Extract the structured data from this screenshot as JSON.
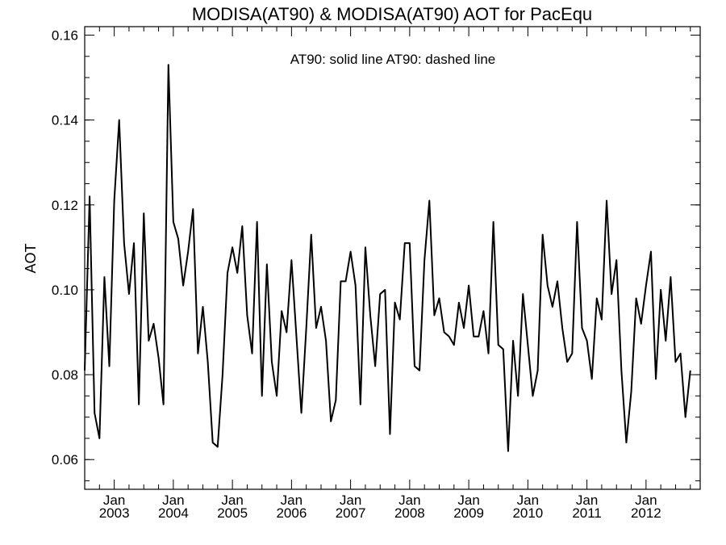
{
  "chart_data": {
    "type": "line",
    "title": "MODISA(AT90) & MODISA(AT90)  AOT for PacEqu",
    "annotation": "AT90: solid line   AT90: dashed line",
    "xlabel": "",
    "ylabel": "AOT",
    "x_axis": {
      "start": "2002-07",
      "end": "2012-12",
      "ticks": [
        {
          "date": "2003-01",
          "top": "Jan",
          "bottom": "2003"
        },
        {
          "date": "2004-01",
          "top": "Jan",
          "bottom": "2004"
        },
        {
          "date": "2005-01",
          "top": "Jan",
          "bottom": "2005"
        },
        {
          "date": "2006-01",
          "top": "Jan",
          "bottom": "2006"
        },
        {
          "date": "2007-01",
          "top": "Jan",
          "bottom": "2007"
        },
        {
          "date": "2008-01",
          "top": "Jan",
          "bottom": "2008"
        },
        {
          "date": "2009-01",
          "top": "Jan",
          "bottom": "2009"
        },
        {
          "date": "2010-01",
          "top": "Jan",
          "bottom": "2010"
        },
        {
          "date": "2011-01",
          "top": "Jan",
          "bottom": "2011"
        },
        {
          "date": "2012-01",
          "top": "Jan",
          "bottom": "2012"
        }
      ]
    },
    "ylim": [
      0.053,
      0.162
    ],
    "yticks": [
      "0.06",
      "0.08",
      "0.10",
      "0.12",
      "0.14",
      "0.16"
    ],
    "grid": false,
    "series": [
      {
        "style": "solid",
        "color": "#000000",
        "start": "2002-07",
        "values": [
          0.081,
          0.122,
          0.071,
          0.065,
          0.103,
          0.082,
          0.121,
          0.14,
          0.111,
          0.099,
          0.111,
          0.073,
          0.118,
          0.088,
          0.092,
          0.084,
          0.073,
          0.153,
          0.116,
          0.112,
          0.101,
          0.109,
          0.119,
          0.085,
          0.096,
          0.083,
          0.064,
          0.063,
          0.08,
          0.104,
          0.11,
          0.104,
          0.115,
          0.094,
          0.085,
          0.116,
          0.075,
          0.106,
          0.083,
          0.075,
          0.095,
          0.09,
          0.107,
          0.089,
          0.071,
          0.091,
          0.113,
          0.091,
          0.096,
          0.088,
          0.069,
          0.074,
          0.102,
          0.102,
          0.109,
          0.101,
          0.073,
          0.11,
          0.094,
          0.082,
          0.099,
          0.1,
          0.066,
          0.097,
          0.093,
          0.111,
          0.111,
          0.082,
          0.081,
          0.107,
          0.121,
          0.094,
          0.098,
          0.09,
          0.089,
          0.087,
          0.097,
          0.091,
          0.101,
          0.089,
          0.089,
          0.095,
          0.085,
          0.116,
          0.087,
          0.086,
          0.062,
          0.088,
          0.075,
          0.099,
          0.087,
          0.075,
          0.081,
          0.113,
          0.101,
          0.096,
          0.102,
          0.091,
          0.083,
          0.085,
          0.116,
          0.091,
          0.088,
          0.079,
          0.098,
          0.093,
          0.121,
          0.099,
          0.107,
          0.081,
          0.064,
          0.076,
          0.098,
          0.092,
          0.101,
          0.109,
          0.079,
          0.1,
          0.088,
          0.103,
          0.083,
          0.085,
          0.07,
          0.081
        ]
      }
    ]
  }
}
